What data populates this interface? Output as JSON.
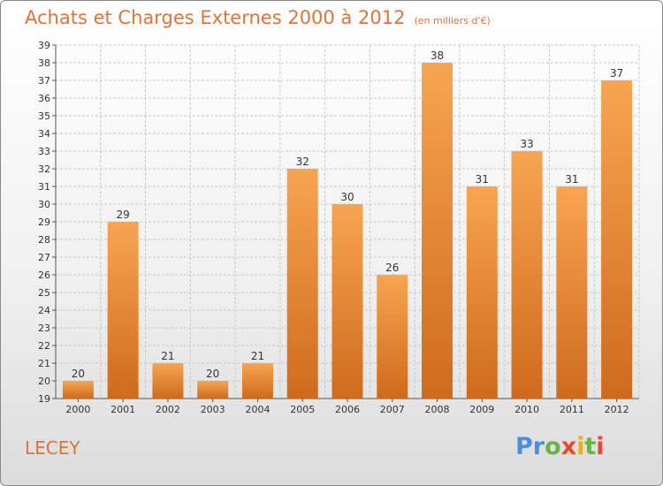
{
  "header": {
    "title": "Achats et Charges Externes 2000 à 2012",
    "subtitle": "(en milliers d'€)"
  },
  "footer": {
    "town": "LECEY",
    "logo": "Proxiti"
  },
  "colors": {
    "title": "#e0733a",
    "bar_light": "#f7a552",
    "bar_dark": "#cf6a1c",
    "grid": "#c8c8c8"
  },
  "chart_data": {
    "type": "bar",
    "title": "Achats et Charges Externes 2000 à 2012",
    "subtitle": "(en milliers d'€)",
    "xlabel": "",
    "ylabel": "",
    "categories": [
      "2000",
      "2001",
      "2002",
      "2003",
      "2004",
      "2005",
      "2006",
      "2007",
      "2008",
      "2009",
      "2010",
      "2011",
      "2012"
    ],
    "values": [
      20,
      29,
      21,
      20,
      21,
      32,
      30,
      26,
      38,
      31,
      33,
      31,
      37
    ],
    "ylim": [
      19,
      39
    ],
    "y_ticks": [
      19,
      20,
      21,
      22,
      23,
      24,
      25,
      26,
      27,
      28,
      29,
      30,
      31,
      32,
      33,
      34,
      35,
      36,
      37,
      38,
      39
    ],
    "grid": true,
    "data_labels": true,
    "legend": "none"
  }
}
